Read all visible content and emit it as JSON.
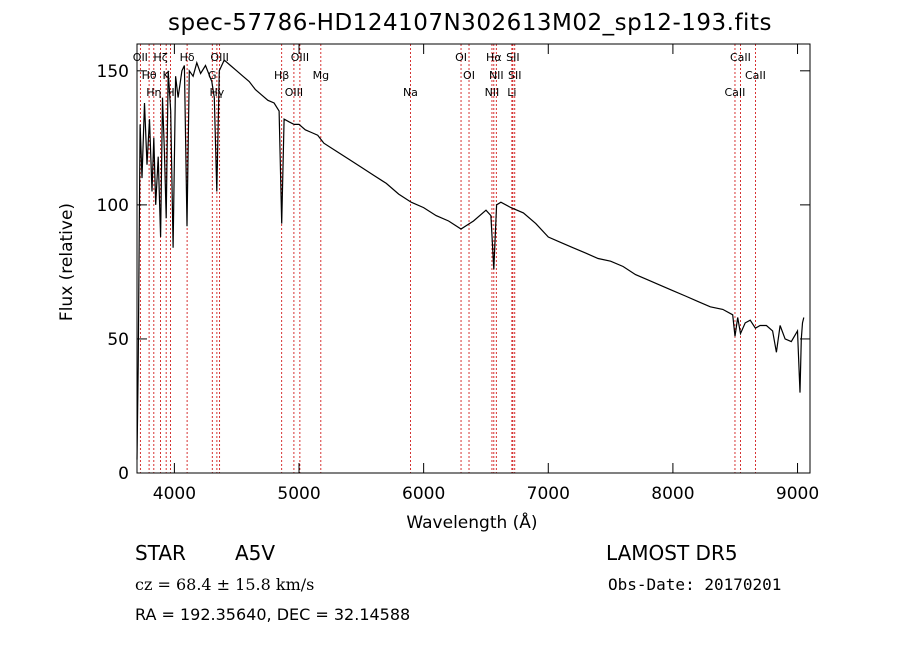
{
  "title": "spec-57786-HD124107N302613M02_sp12-193.fits",
  "footer": {
    "object_type": "STAR",
    "object_class": "A5V",
    "survey": "LAMOST DR5",
    "cz": "cz = 68.4 ± 15.8 km/s",
    "obs_date": "Obs-Date: 20170201",
    "coords": "RA = 192.35640, DEC =  32.14588"
  },
  "chart_data": {
    "type": "line",
    "title": "spec-57786-HD124107N302613M02_sp12-193.fits",
    "xlabel": "Wavelength (Å)",
    "ylabel": "Flux (relative)",
    "xlim": [
      3700,
      9100
    ],
    "ylim": [
      0,
      160
    ],
    "xticks": [
      4000,
      5000,
      6000,
      7000,
      8000,
      9000
    ],
    "yticks": [
      0,
      50,
      100,
      150
    ],
    "grid": false,
    "line_color": "#000000",
    "marker_color": "#cc0000",
    "series": [
      {
        "x": [
          3700,
          3710,
          3725,
          3740,
          3760,
          3780,
          3800,
          3820,
          3835,
          3850,
          3870,
          3889,
          3905,
          3920,
          3934,
          3950,
          3970,
          3990,
          4010,
          4030,
          4060,
          4080,
          4101,
          4120,
          4150,
          4180,
          4210,
          4250,
          4300,
          4320,
          4340,
          4360,
          4400,
          4450,
          4500,
          4550,
          4600,
          4650,
          4700,
          4750,
          4800,
          4840,
          4861,
          4880,
          4920,
          4960,
          5000,
          5050,
          5100,
          5150,
          5200,
          5300,
          5400,
          5500,
          5600,
          5700,
          5800,
          5900,
          6000,
          6100,
          6200,
          6300,
          6400,
          6500,
          6540,
          6563,
          6585,
          6620,
          6700,
          6800,
          6900,
          7000,
          7100,
          7200,
          7300,
          7400,
          7500,
          7600,
          7700,
          7800,
          7900,
          8000,
          8100,
          8200,
          8300,
          8400,
          8480,
          8498,
          8520,
          8542,
          8580,
          8620,
          8662,
          8700,
          8750,
          8800,
          8830,
          8860,
          8900,
          8950,
          9000,
          9020,
          9030,
          9040,
          9050
        ],
        "y": [
          5,
          40,
          130,
          110,
          138,
          115,
          132,
          105,
          125,
          100,
          118,
          88,
          140,
          120,
          95,
          150,
          135,
          84,
          148,
          140,
          150,
          152,
          92,
          150,
          148,
          153,
          149,
          152,
          146,
          140,
          105,
          150,
          154,
          152,
          150,
          148,
          146,
          143,
          141,
          139,
          138,
          135,
          93,
          132,
          131,
          130,
          130,
          128,
          127,
          126,
          123,
          120,
          117,
          114,
          111,
          108,
          104,
          101,
          99,
          96,
          94,
          91,
          94,
          98,
          96,
          76,
          100,
          101,
          99,
          97,
          93,
          88,
          86,
          84,
          82,
          80,
          79,
          77,
          74,
          72,
          70,
          68,
          66,
          64,
          62,
          61,
          59,
          51,
          58,
          52,
          56,
          57,
          54,
          55,
          55,
          53,
          45,
          55,
          50,
          49,
          53,
          30,
          50,
          56,
          58
        ]
      }
    ],
    "lines": [
      {
        "x": 3727,
        "label": "OII"
      },
      {
        "x": 3797,
        "label": "Hθ"
      },
      {
        "x": 3835,
        "label": "Hη"
      },
      {
        "x": 3889,
        "label": "Hζ"
      },
      {
        "x": 3934,
        "label": "K"
      },
      {
        "x": 3969,
        "label": "H"
      },
      {
        "x": 4102,
        "label": "Hδ"
      },
      {
        "x": 4304,
        "label": "G"
      },
      {
        "x": 4341,
        "label": "Hγ"
      },
      {
        "x": 4363,
        "label": "OIII"
      },
      {
        "x": 4861,
        "label": "Hβ"
      },
      {
        "x": 4959,
        "label": "OIII"
      },
      {
        "x": 5007,
        "label": "OIII"
      },
      {
        "x": 5175,
        "label": "Mg"
      },
      {
        "x": 5894,
        "label": "Na"
      },
      {
        "x": 6300,
        "label": "OI"
      },
      {
        "x": 6364,
        "label": "OI"
      },
      {
        "x": 6548,
        "label": "NII"
      },
      {
        "x": 6563,
        "label": "Hα"
      },
      {
        "x": 6583,
        "label": "NII"
      },
      {
        "x": 6708,
        "label": "Li"
      },
      {
        "x": 6716,
        "label": "SII"
      },
      {
        "x": 6731,
        "label": "SII"
      },
      {
        "x": 8498,
        "label": "CaII"
      },
      {
        "x": 8542,
        "label": "CaII"
      },
      {
        "x": 8662,
        "label": "CaII"
      }
    ]
  }
}
